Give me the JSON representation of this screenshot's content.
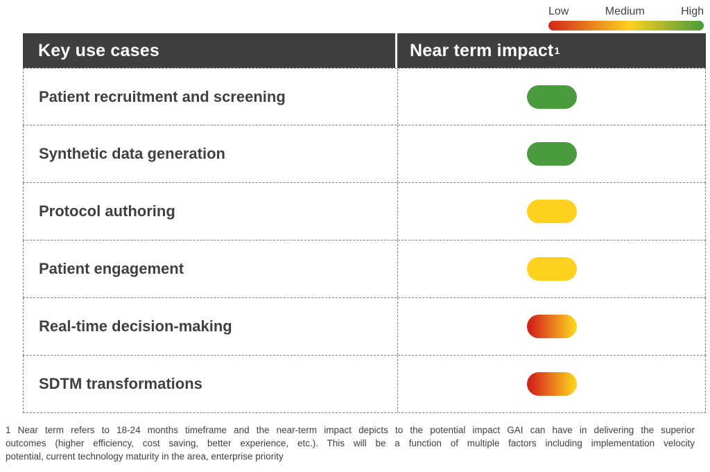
{
  "legend": {
    "low_label": "Low",
    "medium_label": "Medium",
    "high_label": "High"
  },
  "table": {
    "headers": [
      {
        "label": "Key use cases"
      },
      {
        "label": "Near term impact",
        "superscript": "1"
      }
    ],
    "rows": [
      {
        "label": "Patient recruitment and screening",
        "impact": "high"
      },
      {
        "label": "Synthetic data generation",
        "impact": "high"
      },
      {
        "label": "Protocol authoring",
        "impact": "medium"
      },
      {
        "label": "Patient engagement",
        "impact": "medium"
      },
      {
        "label": "Real-time decision-making",
        "impact": "low-medium"
      },
      {
        "label": "SDTM transformations",
        "impact": "low-medium"
      }
    ]
  },
  "footnote": {
    "lines": [
      "1 Near term refers to 18-24 months timeframe and the near-term impact depicts to the potential impact GAI can have in delivering the superior",
      "outcomes (higher efficiency, cost saving, better experience, etc.). This will be a function of multiple factors including implementation velocity",
      "potential, current technology maturity in the area, enterprise priority"
    ]
  },
  "colors": {
    "impact_high": "#4A9B3E",
    "impact_medium": "#FDD11E",
    "impact_low": "#D3261B",
    "header_bg": "#3F3F3F",
    "dash_border": "#7F7F7F",
    "text_dark": "#404040"
  }
}
